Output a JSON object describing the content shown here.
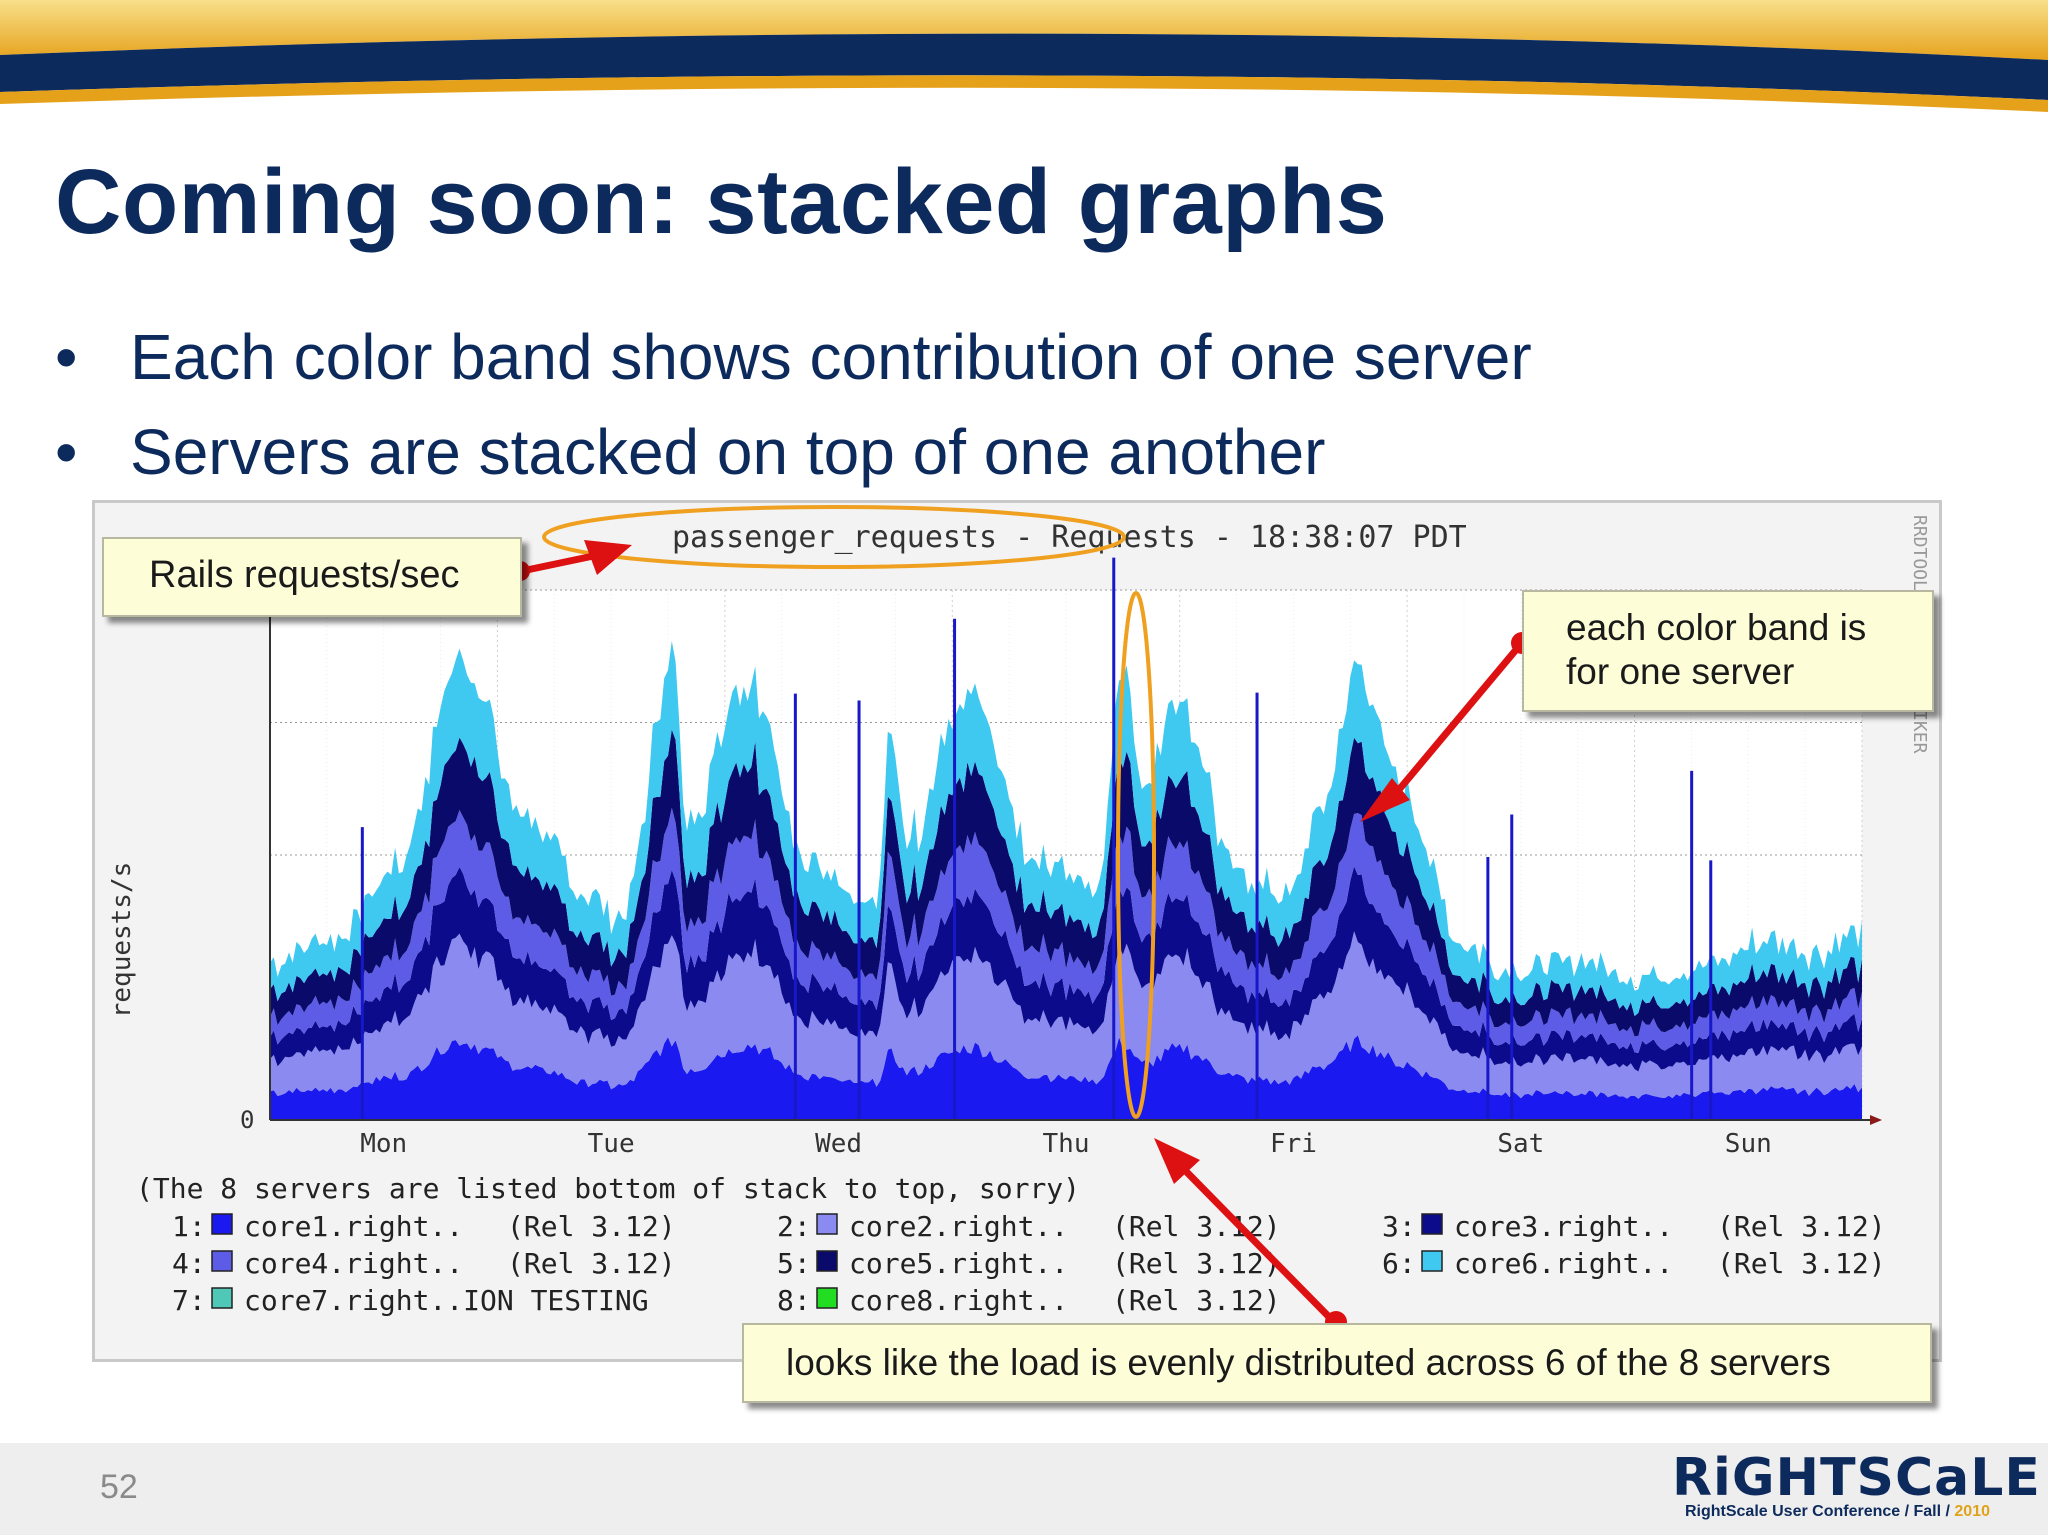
{
  "slide": {
    "title": "Coming soon: stacked graphs",
    "bullets": [
      "Each color band shows contribution of one server",
      "Servers are stacked on top of one another"
    ],
    "page_number": "52",
    "logo": {
      "wordmark": "RiGHTSCaLE",
      "subtitle_prefix": "RightScale User Conference / Fall / ",
      "year": "2010"
    },
    "colors": {
      "navy": "#0d2a5c",
      "gold": "#e6a11b"
    }
  },
  "callouts": {
    "rails": "Rails requests/sec",
    "band_line1": "each color band is",
    "band_line2": "for one server",
    "load": "looks like the load is evenly distributed across 6 of the 8 servers"
  },
  "chart_data": {
    "type": "area",
    "stacked": true,
    "title": "passenger_requests - Requests - 18:38:07 PDT",
    "ylabel": "requests/s",
    "y_tick_labels": [
      "0"
    ],
    "watermark": "RRDTOOL / TOBI OETIKER",
    "x_tick_labels": [
      "Mon",
      "Tue",
      "Wed",
      "Thu",
      "Fri",
      "Sat",
      "Sun"
    ],
    "ylim": [
      0,
      100
    ],
    "grid": true,
    "note": "(The 8 servers are listed bottom of stack to top, sorry)",
    "legend": [
      {
        "index": "1:",
        "name": "core1.right..",
        "rel": "(Rel 3.12)",
        "color": "#1a1af0"
      },
      {
        "index": "2:",
        "name": "core2.right..",
        "rel": "(Rel 3.12)",
        "color": "#8a8af0"
      },
      {
        "index": "3:",
        "name": "core3.right..",
        "rel": "(Rel 3.12)",
        "color": "#0b0b8c"
      },
      {
        "index": "4:",
        "name": "core4.right..",
        "rel": "(Rel 3.12)",
        "color": "#5c5ce6"
      },
      {
        "index": "5:",
        "name": "core5.right..",
        "rel": "(Rel 3.12)",
        "color": "#0a0a6a"
      },
      {
        "index": "6:",
        "name": "core6.right..",
        "rel": "(Rel 3.12)",
        "color": "#3fc8f0"
      },
      {
        "index": "7:",
        "name": "core7.right..ION TESTING",
        "rel": "",
        "color": "#4fc8b8"
      },
      {
        "index": "8:",
        "name": "core8.right..",
        "rel": "(Rel 3.12)",
        "color": "#22dd22"
      }
    ],
    "layer_fractions": [
      0.17,
      0.22,
      0.14,
      0.13,
      0.16,
      0.18
    ],
    "total_profile": [
      {
        "x": 0.0,
        "y": 30
      },
      {
        "x": 0.04,
        "y": 34
      },
      {
        "x": 0.08,
        "y": 48
      },
      {
        "x": 0.12,
        "y": 88
      },
      {
        "x": 0.16,
        "y": 58
      },
      {
        "x": 0.2,
        "y": 42
      },
      {
        "x": 0.22,
        "y": 38
      },
      {
        "x": 0.26,
        "y": 56
      },
      {
        "x": 0.255,
        "y": 88
      },
      {
        "x": 0.3,
        "y": 84
      },
      {
        "x": 0.34,
        "y": 48
      },
      {
        "x": 0.38,
        "y": 40
      },
      {
        "x": 0.4,
        "y": 52
      },
      {
        "x": 0.39,
        "y": 72
      },
      {
        "x": 0.44,
        "y": 80
      },
      {
        "x": 0.48,
        "y": 50
      },
      {
        "x": 0.52,
        "y": 44
      },
      {
        "x": 0.55,
        "y": 62
      },
      {
        "x": 0.535,
        "y": 86
      },
      {
        "x": 0.57,
        "y": 80
      },
      {
        "x": 0.61,
        "y": 46
      },
      {
        "x": 0.64,
        "y": 42
      },
      {
        "x": 0.66,
        "y": 60
      },
      {
        "x": 0.685,
        "y": 86
      },
      {
        "x": 0.71,
        "y": 62
      },
      {
        "x": 0.75,
        "y": 34
      },
      {
        "x": 0.78,
        "y": 28
      },
      {
        "x": 0.82,
        "y": 30
      },
      {
        "x": 0.86,
        "y": 27
      },
      {
        "x": 0.9,
        "y": 29
      },
      {
        "x": 0.94,
        "y": 34
      },
      {
        "x": 0.97,
        "y": 32
      },
      {
        "x": 1.0,
        "y": 36
      }
    ]
  }
}
